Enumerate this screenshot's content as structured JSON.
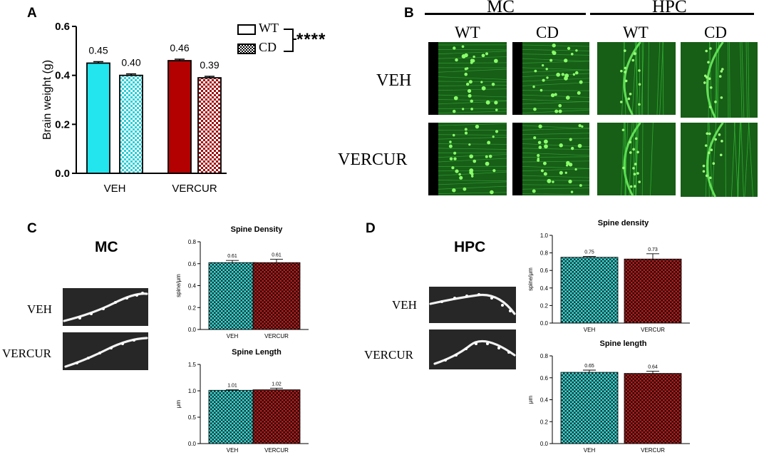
{
  "panels": {
    "A": "A",
    "B": "B",
    "C": "C",
    "D": "D"
  },
  "legend": {
    "wt": "WT",
    "cd": "CD",
    "significance": "****"
  },
  "panel_b": {
    "regions": [
      "MC",
      "HPC"
    ],
    "columns": [
      "WT",
      "CD",
      "WT",
      "CD"
    ],
    "rows": [
      "VEH",
      "VERCUR"
    ]
  },
  "panel_c": {
    "title": "MC",
    "rows": [
      "VEH",
      "VERCUR"
    ]
  },
  "panel_d": {
    "title": "HPC",
    "rows": [
      "VEH",
      "VERCUR"
    ]
  },
  "colors": {
    "wt_cyan": "#22e5ee",
    "cd_cyan_check": "#2ad0d8",
    "red": "#b30000",
    "cd_red_check": "#8e0b0b",
    "green": "#1ea81e",
    "teal_check": "#1aa6a6",
    "dark_red_check": "#7a1616"
  },
  "chart_data": [
    {
      "id": "brain-weight",
      "type": "bar",
      "ylabel": "Brain weight (g)",
      "categories": [
        "VEH",
        "VERCUR"
      ],
      "series": [
        {
          "name": "WT",
          "values": [
            0.45,
            0.46
          ],
          "errors": [
            0.006,
            0.006
          ]
        },
        {
          "name": "CD",
          "values": [
            0.4,
            0.39
          ],
          "errors": [
            0.006,
            0.006
          ]
        }
      ],
      "value_labels": [
        [
          "0.45",
          "0.46"
        ],
        [
          "0.40",
          "0.39"
        ]
      ],
      "ylim": [
        0,
        0.6
      ],
      "yticks": [
        "0.0",
        "0.2",
        "0.4",
        "0.6"
      ]
    },
    {
      "id": "mc-spine-density",
      "type": "bar",
      "title": "Spine Density",
      "ylabel": "spine/μm",
      "categories": [
        "VEH",
        "VERCUR"
      ],
      "values": [
        0.61,
        0.61
      ],
      "errors": [
        0.02,
        0.03
      ],
      "value_labels": [
        "0.61",
        "0.61"
      ],
      "ylim": [
        0,
        0.8
      ],
      "yticks": [
        "0.0",
        "0.2",
        "0.4",
        "0.6",
        "0.8"
      ]
    },
    {
      "id": "mc-spine-length",
      "type": "bar",
      "title": "Spine Length",
      "ylabel": "μm",
      "categories": [
        "VEH",
        "VERCUR"
      ],
      "values": [
        1.01,
        1.02
      ],
      "errors": [
        0.01,
        0.03
      ],
      "value_labels": [
        "1.01",
        "1.02"
      ],
      "ylim": [
        0,
        1.5
      ],
      "yticks": [
        "0.0",
        "0.5",
        "1.0",
        "1.5"
      ]
    },
    {
      "id": "hpc-spine-density",
      "type": "bar",
      "title": "Spine density",
      "ylabel": "spine/μm",
      "categories": [
        "VEH",
        "VERCUR"
      ],
      "values": [
        0.75,
        0.73
      ],
      "errors": [
        0.01,
        0.06
      ],
      "value_labels": [
        "0.75",
        "0.73"
      ],
      "ylim": [
        0,
        1.0
      ],
      "yticks": [
        "0.0",
        "0.2",
        "0.4",
        "0.6",
        "0.8",
        "1.0"
      ]
    },
    {
      "id": "hpc-spine-length",
      "type": "bar",
      "title": "Spine length",
      "ylabel": "μm",
      "categories": [
        "VEH",
        "VERCUR"
      ],
      "values": [
        0.65,
        0.64
      ],
      "errors": [
        0.02,
        0.02
      ],
      "value_labels": [
        "0.65",
        "0.64"
      ],
      "ylim": [
        0,
        0.8
      ],
      "yticks": [
        "0.0",
        "0.2",
        "0.4",
        "0.6",
        "0.8"
      ]
    }
  ]
}
